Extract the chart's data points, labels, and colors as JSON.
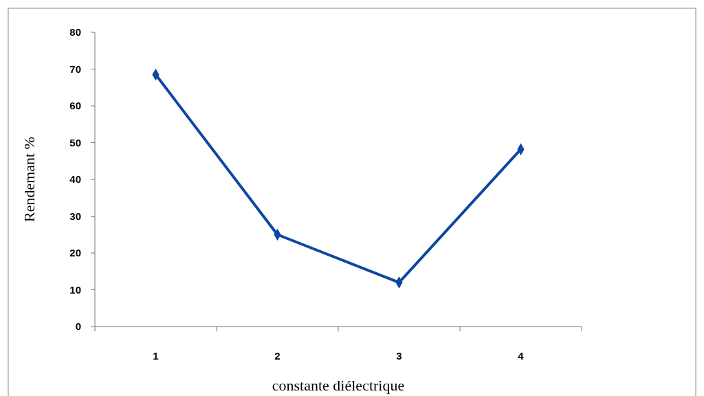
{
  "chart_data": {
    "type": "line",
    "xlabel": "constante diélectrique",
    "ylabel": "Rendemant %",
    "categories": [
      "1",
      "2",
      "3",
      "4"
    ],
    "series": [
      {
        "color": "#0d47a1",
        "values": [
          68.5,
          25,
          12,
          48.2
        ]
      }
    ],
    "ylim": [
      0,
      80
    ],
    "yticks": [
      0,
      10,
      20,
      30,
      40,
      50,
      60,
      70,
      80
    ],
    "marker": "diamond",
    "line_style": "solid"
  }
}
